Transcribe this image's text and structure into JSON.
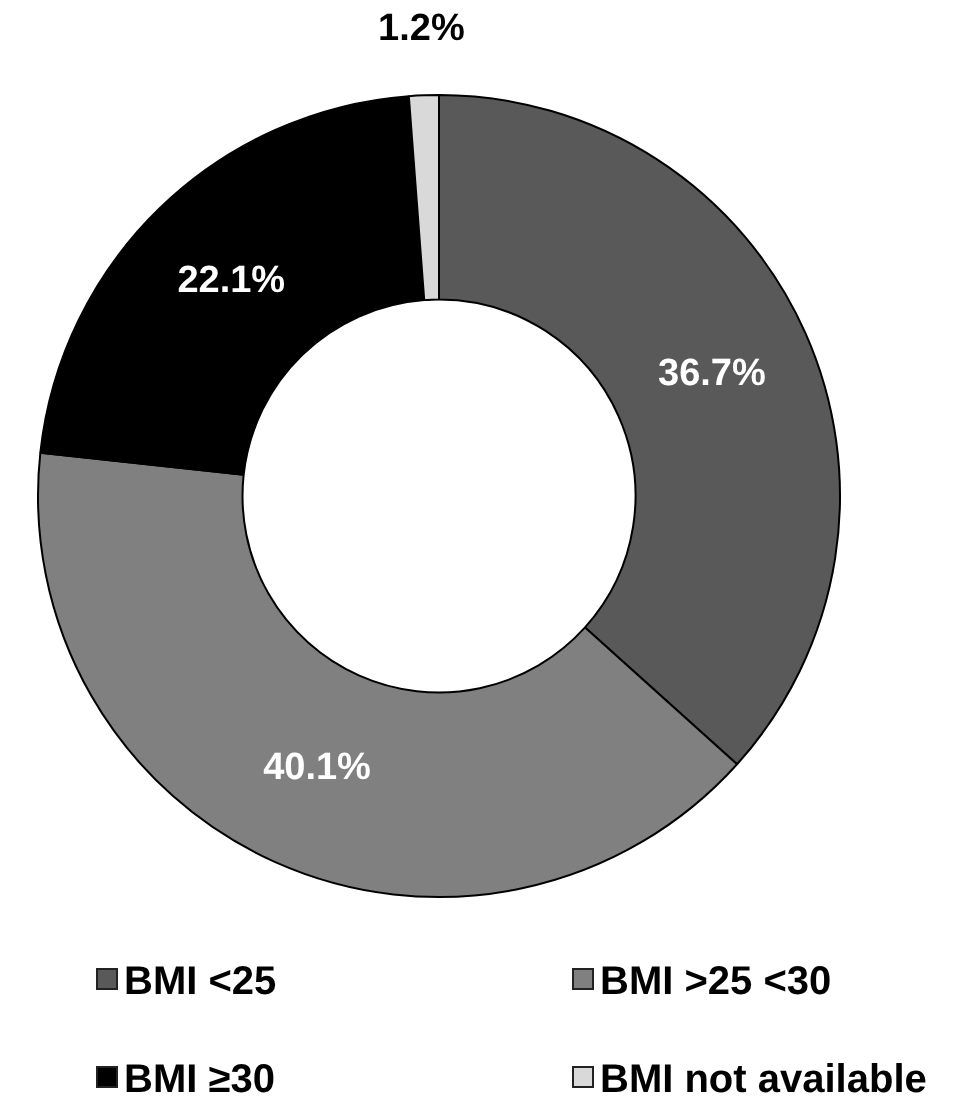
{
  "chart_data": {
    "type": "donut",
    "categories": [
      "BMI <25",
      "BMI >25 <30",
      "BMI ≥30",
      "BMI not available"
    ],
    "values": [
      36.7,
      40.1,
      22.1,
      1.2
    ],
    "colors": [
      "#595959",
      "#808080",
      "#000000",
      "#d9d9d9"
    ],
    "value_labels": [
      "36.7%",
      "40.1%",
      "22.1%",
      "1.2%"
    ],
    "legend": "bottom"
  }
}
